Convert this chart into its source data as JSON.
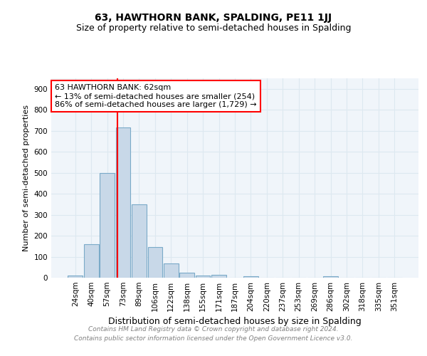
{
  "title": "63, HAWTHORN BANK, SPALDING, PE11 1JJ",
  "subtitle": "Size of property relative to semi-detached houses in Spalding",
  "xlabel": "Distribution of semi-detached houses by size in Spalding",
  "ylabel": "Number of semi-detached properties",
  "bar_labels": [
    "24sqm",
    "40sqm",
    "57sqm",
    "73sqm",
    "89sqm",
    "106sqm",
    "122sqm",
    "138sqm",
    "155sqm",
    "171sqm",
    "187sqm",
    "204sqm",
    "220sqm",
    "237sqm",
    "253sqm",
    "269sqm",
    "286sqm",
    "302sqm",
    "318sqm",
    "335sqm",
    "351sqm"
  ],
  "bar_values": [
    10,
    160,
    500,
    715,
    350,
    145,
    68,
    25,
    10,
    13,
    0,
    8,
    0,
    0,
    0,
    0,
    8,
    0,
    0,
    0,
    0
  ],
  "bar_color": "#c8d8e8",
  "bar_edge_color": "#7aaac8",
  "bar_linewidth": 0.8,
  "red_line_x": 2.62,
  "annotation_text_line1": "63 HAWTHORN BANK: 62sqm",
  "annotation_text_line2": "← 13% of semi-detached houses are smaller (254)",
  "annotation_text_line3": "86% of semi-detached houses are larger (1,729) →",
  "ylim": [
    0,
    950
  ],
  "yticks": [
    0,
    100,
    200,
    300,
    400,
    500,
    600,
    700,
    800,
    900
  ],
  "grid_color": "#dde8f0",
  "background_color": "#f0f5fa",
  "footer_line1": "Contains HM Land Registry data © Crown copyright and database right 2024.",
  "footer_line2": "Contains public sector information licensed under the Open Government Licence v3.0.",
  "title_fontsize": 10,
  "subtitle_fontsize": 9,
  "xlabel_fontsize": 9,
  "ylabel_fontsize": 8,
  "tick_fontsize": 7.5,
  "annotation_fontsize": 8,
  "footer_fontsize": 6.5
}
